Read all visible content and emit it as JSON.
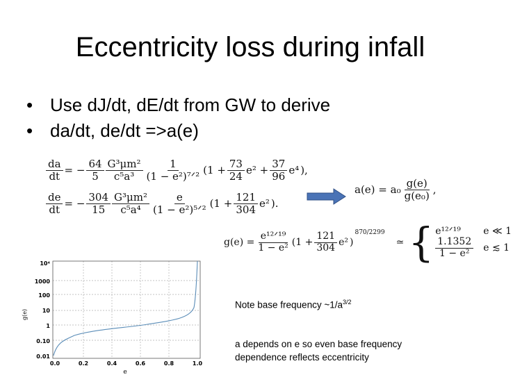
{
  "title": "Eccentricity loss during infall",
  "bullets": [
    {
      "symbol": "•",
      "text": "Use dJ/dt, dE/dt from GW to derive"
    },
    {
      "symbol": "•",
      "text": "da/dt, de/dt =>a(e)"
    }
  ],
  "equations": {
    "dadt": {
      "lhs_num": "da",
      "lhs_den": "dt",
      "sign": "= −",
      "f1_num": "64",
      "f1_den": "5",
      "f2_num": "G³μm²",
      "f2_den": "c⁵a³",
      "f3_num": "1",
      "f3_den": "(1 − e²)⁷ᐟ²",
      "paren": "(1 +",
      "t1_num": "73",
      "t1_den": "24",
      "t1_var": "e² +",
      "t2_num": "37",
      "t2_den": "96",
      "t2_var": "e⁴",
      "close": "),"
    },
    "dedt": {
      "lhs_num": "de",
      "lhs_den": "dt",
      "sign": "= −",
      "f1_num": "304",
      "f1_den": "15",
      "f2_num": "G³μm²",
      "f2_den": "c⁵a⁴",
      "f3_num": "e",
      "f3_den": "(1 − e²)⁵ᐟ²",
      "paren": "(1 +",
      "t1_num": "121",
      "t1_den": "304",
      "t1_var": "e²",
      "close": ")."
    },
    "ae": {
      "lhs": "a(e) = a₀",
      "num": "g(e)",
      "den": "g(e₀)",
      "tail": ","
    },
    "ge": {
      "lhs": "g(e) =",
      "num": "e¹²ᐟ¹⁹",
      "den": "1 − e²",
      "paren": "(1 +",
      "t_num": "121",
      "t_den": "304",
      "t_var": "e²",
      "close": ")",
      "power": "870/2299",
      "approx": "≃",
      "case1_num": "e¹²ᐟ¹⁹",
      "case1_den": "",
      "case1_cond": "e ≪ 1",
      "case2_num": "1.1352",
      "case2_den": "1 − e²",
      "case2_cond": "e ≲ 1"
    }
  },
  "arrow_color": "#4a73b6",
  "plot": {
    "ylabel": "g(e)",
    "xlabel": "e",
    "y_ticks": [
      "10⁴",
      "1000",
      "100",
      "10",
      "1",
      "0.10",
      "0.01"
    ],
    "x_ticks": [
      "0.0",
      "0.2",
      "0.4",
      "0.6",
      "0.8",
      "1.0"
    ],
    "curve_color": "#5b8db8"
  },
  "notes": {
    "note1_prefix": "Note base frequency ~1/a",
    "note1_sup": "3/2",
    "note2_line1": "a depends on e so even base frequency",
    "note2_line2": "dependence reflects eccentricity"
  }
}
